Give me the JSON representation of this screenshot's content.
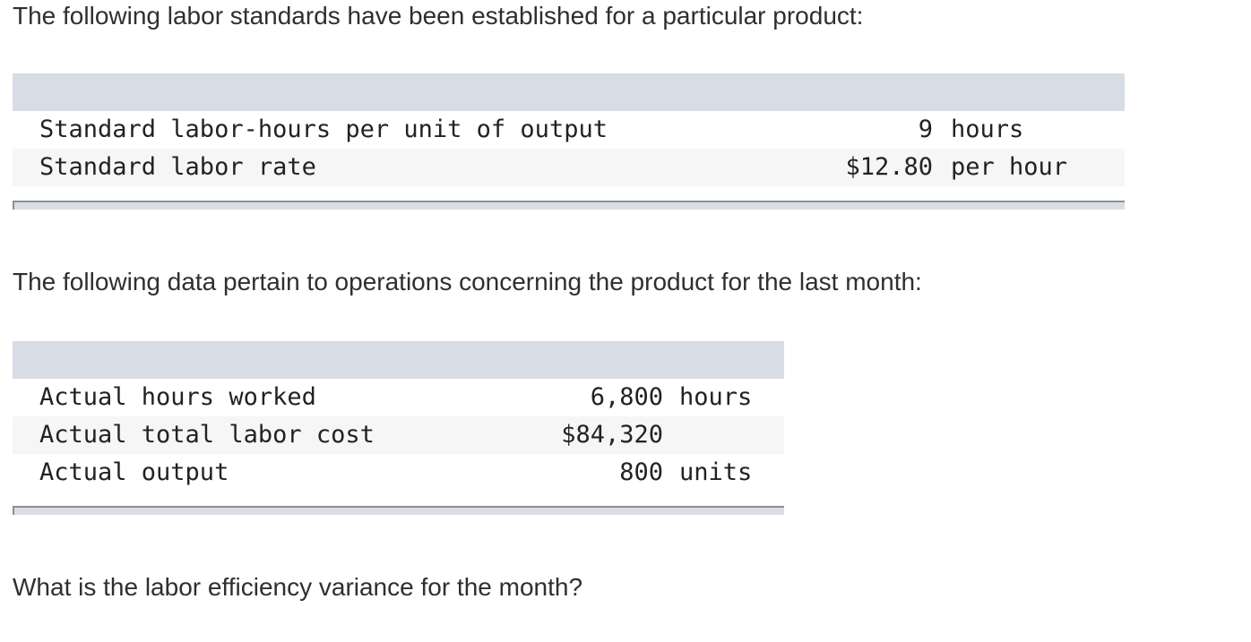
{
  "intro_text": "The following labor standards have been established for a particular product:",
  "standards_table": {
    "rows": [
      {
        "label": "Standard labor-hours per unit of output",
        "amount": "9",
        "unit": "hours"
      },
      {
        "label": "Standard labor rate",
        "amount": "$12.80",
        "unit": "per hour"
      }
    ]
  },
  "data_text": "The following data pertain to operations concerning the product for the last month:",
  "actuals_table": {
    "rows": [
      {
        "label": "Actual hours worked",
        "amount": "6,800",
        "unit": "hours"
      },
      {
        "label": "Actual total labor cost",
        "amount": "$84,320",
        "unit": ""
      },
      {
        "label": "Actual output",
        "amount": "800",
        "unit": "units"
      }
    ]
  },
  "question_text": "What is the labor efficiency variance for the month?"
}
